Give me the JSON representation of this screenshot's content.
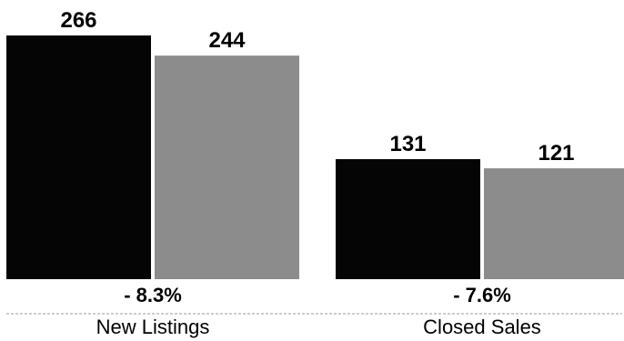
{
  "chart_data": {
    "type": "bar",
    "categories": [
      "New Listings",
      "Closed Sales"
    ],
    "series": [
      {
        "values": [
          266,
          131
        ],
        "color": "#050505"
      },
      {
        "values": [
          244,
          121
        ],
        "color": "#8c8c8c"
      }
    ],
    "value_labels": [
      [
        "266",
        "131"
      ],
      [
        "244",
        "121"
      ]
    ],
    "change_labels": [
      "- 8.3%",
      "- 7.6%"
    ],
    "ylim": [
      0,
      266
    ],
    "grid": false,
    "legend": "none"
  }
}
